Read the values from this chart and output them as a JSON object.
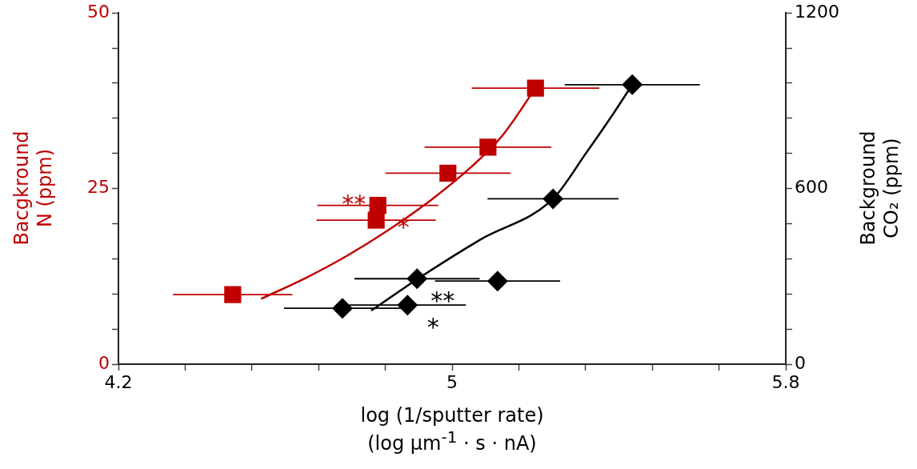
{
  "chart_data": {
    "type": "scatter",
    "xlabel": "log (1/sputter rate)\n(log µm$^{-1}$ · s · nA)",
    "ylabel": "Bacgkround\nN (ppm)",
    "y2label": "Background\nCO₂ (ppm)",
    "xlim": [
      4.2,
      5.8
    ],
    "xticks": [
      4.2,
      {
        "value": 4.36,
        "label": null
      },
      {
        "value": 4.52,
        "label": null
      },
      {
        "value": 4.68,
        "label": null
      },
      {
        "value": 4.84,
        "label": null
      },
      5,
      {
        "value": 5.16,
        "label": null
      },
      {
        "value": 5.32,
        "label": null
      },
      {
        "value": 5.48,
        "label": null
      },
      {
        "value": 5.64,
        "label": null
      },
      5.8
    ],
    "ylim": [
      0,
      50
    ],
    "yticks": [
      0,
      {
        "value": 5,
        "label": null
      },
      {
        "value": 10,
        "label": null
      },
      {
        "value": 15,
        "label": null
      },
      {
        "value": 20,
        "label": null
      },
      25,
      {
        "value": 30,
        "label": null
      },
      {
        "value": 35,
        "label": null
      },
      {
        "value": 40,
        "label": null
      },
      {
        "value": 45,
        "label": null
      },
      50
    ],
    "y2lim": [
      0,
      1200
    ],
    "y2ticks": [
      0,
      {
        "value": 120,
        "label": null
      },
      {
        "value": 240,
        "label": null
      },
      {
        "value": 360,
        "label": null
      },
      {
        "value": 480,
        "label": null
      },
      600,
      {
        "value": 720,
        "label": null
      },
      {
        "value": 840,
        "label": null
      },
      {
        "value": 960,
        "label": null
      },
      {
        "value": 1080,
        "label": null
      },
      1200
    ],
    "grid": false,
    "legend": false,
    "series": [
      {
        "type": "scatter",
        "color": "#c00000",
        "marker": "square",
        "x": [
          4.474,
          4.822,
          4.818,
          4.99,
          5.086,
          5.2
        ],
        "values": [
          9.9,
          22.6,
          20.5,
          27.2,
          30.9,
          39.3
        ],
        "value_labels": [
          null,
          "*",
          "**",
          null,
          null,
          null
        ],
        "xerrors": [
          0.143,
          0.145,
          0.143,
          0.15,
          0.152,
          0.153
        ]
      },
      {
        "type": "line",
        "color": "#c00000",
        "marker": "none",
        "x": [
          4.542,
          4.65,
          4.75,
          4.85,
          4.95,
          5.05,
          5.12,
          5.2
        ],
        "values": [
          9.3,
          12.3,
          15.5,
          19.2,
          23.4,
          28.3,
          32.5,
          39.3
        ]
      },
      {
        "type": "scatter",
        "color": "#000000",
        "marker": "diamond",
        "axis": "y2",
        "x": [
          4.737,
          4.893,
          4.916,
          5.109,
          5.242,
          5.432
        ],
        "values": [
          191,
          202,
          292,
          284,
          565,
          955
        ],
        "value_labels": [
          null,
          "*",
          "**",
          null,
          null,
          null
        ],
        "xerrors": [
          0.14,
          0.14,
          0.15,
          0.15,
          0.157,
          0.162
        ]
      },
      {
        "type": "line",
        "color": "#000000",
        "marker": "none",
        "axis": "y2",
        "x": [
          4.806,
          4.918,
          5.067,
          5.242,
          5.322,
          5.388,
          5.432
        ],
        "values": [
          183,
          292,
          425,
          565,
          723,
          859,
          955
        ]
      }
    ]
  }
}
